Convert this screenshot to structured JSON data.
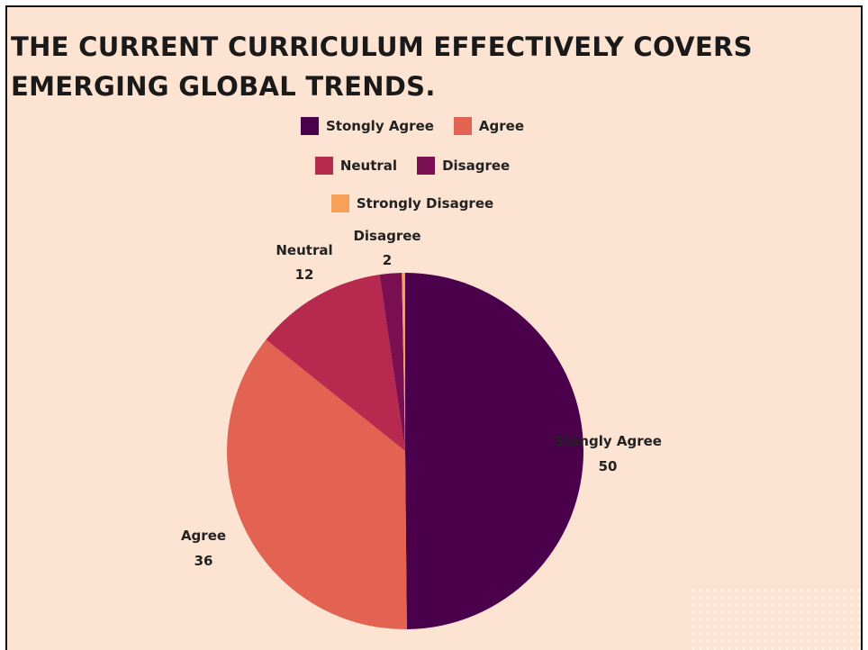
{
  "title": "THE CURRENT CURRICULUM EFFECTIVELY COVERS EMERGING GLOBAL TRENDS.",
  "colors": {
    "background": "#fde3d2",
    "strongly_agree": "#4a004a",
    "agree": "#e36352",
    "neutral": "#b8294f",
    "disagree": "#7a0f52",
    "strongly_disagree": "#f6a05a"
  },
  "chart_data": {
    "type": "pie",
    "title": "THE CURRENT CURRICULUM EFFECTIVELY COVERS EMERGING GLOBAL TRENDS.",
    "categories": [
      "Stongly Agree",
      "Agree",
      "Neutral",
      "Disagree",
      "Strongly Disagree"
    ],
    "values": [
      50,
      36,
      12,
      2,
      0.3
    ],
    "legend": {
      "placement": "top",
      "rows": [
        [
          "Stongly Agree",
          "Agree"
        ],
        [
          "Neutral",
          "Disagree"
        ],
        [
          "Strongly Disagree"
        ]
      ]
    },
    "data_labels": [
      {
        "name": "Stongly Agree",
        "value": "50"
      },
      {
        "name": "Agree",
        "value": "36"
      },
      {
        "name": "Neutral",
        "value": "12"
      },
      {
        "name": "Disagree",
        "value": "2"
      }
    ]
  }
}
